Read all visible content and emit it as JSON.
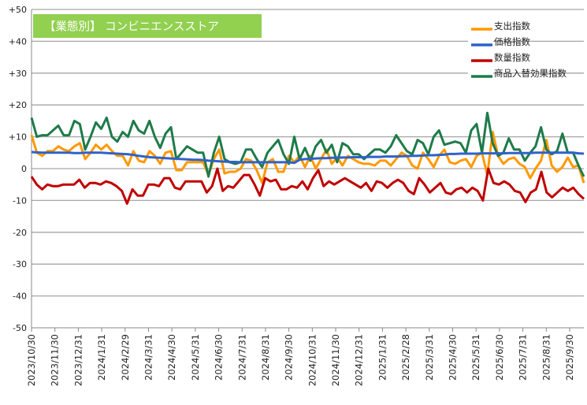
{
  "chart_data": {
    "type": "line",
    "title": "【業態別】 コンビニエンスストア",
    "title_bg": "#92d050",
    "ylim": [
      -50,
      50
    ],
    "yticks": [
      "+50",
      "+40",
      "+30",
      "+20",
      "+10",
      "0",
      "-10",
      "-20",
      "-30",
      "-40",
      "-50"
    ],
    "ytick_values": [
      50,
      40,
      30,
      20,
      10,
      0,
      -10,
      -20,
      -30,
      -40,
      -50
    ],
    "xticks": [
      "2023/10/30",
      "2023/11/30",
      "2023/12/31",
      "2024/1/31",
      "2024/2/29",
      "2024/3/31",
      "2024/4/30",
      "2024/5/31",
      "2024/6/30",
      "2024/7/31",
      "2024/8/31",
      "2024/9/30",
      "2024/10/31",
      "2024/11/30",
      "2024/12/31",
      "2025/1/31",
      "2025/2/28",
      "2025/3/31",
      "2025/4/30",
      "2025/5/31",
      "2025/6/30",
      "2025/7/31",
      "2025/8/31",
      "2025/9/30"
    ],
    "grid": true,
    "legend_position": "top-right",
    "series": [
      {
        "name": "支出指数",
        "color": "#ff9900",
        "values": [
          10.5,
          5,
          4,
          5.5,
          5.5,
          7,
          6,
          5.5,
          7,
          8,
          3,
          5,
          7.5,
          6,
          7.5,
          5.5,
          4,
          4,
          1,
          5.5,
          2.5,
          2,
          5.5,
          4,
          1.5,
          5,
          5.5,
          -0.5,
          -0.5,
          2,
          2,
          2,
          2,
          -2,
          3,
          6,
          -1.5,
          -1,
          -1,
          0,
          3,
          2.5,
          -0.5,
          -4.5,
          2,
          3,
          -1,
          -1,
          4,
          2,
          4,
          0.5,
          4,
          0,
          3,
          6,
          1.5,
          3.5,
          1,
          4,
          3,
          2,
          1.5,
          1.5,
          1,
          2.5,
          2.5,
          1,
          3,
          5,
          4,
          1,
          0,
          5,
          3,
          0.5,
          4,
          6,
          2,
          1.5,
          2.5,
          3,
          0.5,
          4,
          5,
          -2,
          11.5,
          4,
          1.5,
          3,
          3.5,
          1.5,
          0.5,
          -3,
          0,
          2.5,
          9,
          1,
          -1,
          0.5,
          3.5,
          0.5,
          1,
          -4.5
        ]
      },
      {
        "name": "価格指数",
        "color": "#2f62c9",
        "values": [
          5.2,
          5.1,
          5,
          5,
          5,
          5,
          5,
          5,
          4.9,
          4.9,
          5,
          5,
          5,
          5,
          4.9,
          4.8,
          4.7,
          4.6,
          4.5,
          4.3,
          4,
          3.8,
          3.6,
          3.5,
          3.4,
          3.3,
          3.2,
          3.1,
          3,
          2.9,
          2.8,
          2.8,
          2.7,
          2.5,
          2.4,
          2.3,
          2.2,
          2.1,
          2.1,
          2,
          2,
          2,
          2,
          2,
          2,
          2,
          2,
          2,
          2,
          1.8,
          2.8,
          3,
          3.1,
          3.2,
          3.3,
          3.3,
          3.4,
          3.4,
          3.5,
          3.5,
          3.6,
          3.6,
          3.6,
          3.7,
          3.7,
          3.7,
          3.8,
          3.8,
          3.8,
          3.9,
          3.9,
          4,
          4,
          4.1,
          4.2,
          4.2,
          4.3,
          4.4,
          4.6,
          4.6,
          4.7,
          4.7,
          4.7,
          4.7,
          4.8,
          4.8,
          4.8,
          4.8,
          4.8,
          4.9,
          4.9,
          4.9,
          4.9,
          4.9,
          5,
          5,
          5,
          5,
          5,
          5,
          5,
          5,
          4.8,
          4.7
        ]
      },
      {
        "name": "数量指数",
        "color": "#c00000",
        "values": [
          -2.5,
          -5,
          -6.5,
          -5,
          -5.5,
          -5.5,
          -5,
          -5,
          -5,
          -3.5,
          -6,
          -4.5,
          -4.5,
          -5,
          -4,
          -4.5,
          -5.5,
          -7,
          -11,
          -6.5,
          -8.5,
          -8.5,
          -5,
          -5,
          -5.5,
          -3,
          -3,
          -6,
          -6.5,
          -4,
          -4,
          -4,
          -4,
          -7.5,
          -5.5,
          0,
          -7,
          -5.5,
          -6,
          -4,
          -2,
          -2,
          -5,
          -8.5,
          -3,
          -4,
          -3.5,
          -6.5,
          -6.5,
          -5.5,
          -6,
          -4,
          -6.5,
          -3,
          -0.5,
          -5.5,
          -4,
          -5,
          -4,
          -3,
          -4,
          -5,
          -6,
          -4.5,
          -7,
          -4,
          -4.5,
          -6,
          -4.5,
          -3.5,
          -4.5,
          -7,
          -8,
          -3,
          -5,
          -7.5,
          -6,
          -4.5,
          -7.5,
          -8,
          -6.5,
          -6,
          -7.5,
          -6,
          -7,
          -10,
          0,
          -4.5,
          -5,
          -4,
          -5,
          -7,
          -7.5,
          -10.5,
          -7.5,
          -6.5,
          -1,
          -7.5,
          -9,
          -7.5,
          -6,
          -7,
          -6,
          -8,
          -9.5
        ]
      },
      {
        "name": "商品入替効果指数",
        "color": "#1e7b4a",
        "values": [
          16,
          10,
          10.5,
          10.5,
          12,
          13.5,
          10.5,
          10.5,
          15,
          14,
          6,
          10,
          14.5,
          12.5,
          16,
          10,
          8.5,
          11.5,
          10,
          15,
          12,
          11,
          15,
          10,
          6.5,
          11,
          13,
          3,
          5,
          7,
          6,
          5,
          5,
          -2.5,
          5,
          10,
          3,
          2,
          1.5,
          2,
          6,
          6,
          3,
          0.5,
          5,
          7,
          9,
          4.5,
          1.5,
          10,
          3,
          6.5,
          2.5,
          7,
          9,
          5,
          7.5,
          2,
          8,
          7,
          4.5,
          4.5,
          3,
          4.5,
          6,
          6,
          5,
          7,
          10.5,
          8,
          5.5,
          4.5,
          9,
          8,
          4.5,
          10,
          12,
          7.5,
          8,
          8.5,
          8,
          5,
          12,
          14,
          5,
          17.5,
          8,
          4,
          5,
          9.5,
          6,
          6,
          2.5,
          5,
          7,
          13,
          6,
          4.5,
          5.5,
          11,
          5,
          5,
          1,
          -2.5
        ]
      }
    ]
  }
}
